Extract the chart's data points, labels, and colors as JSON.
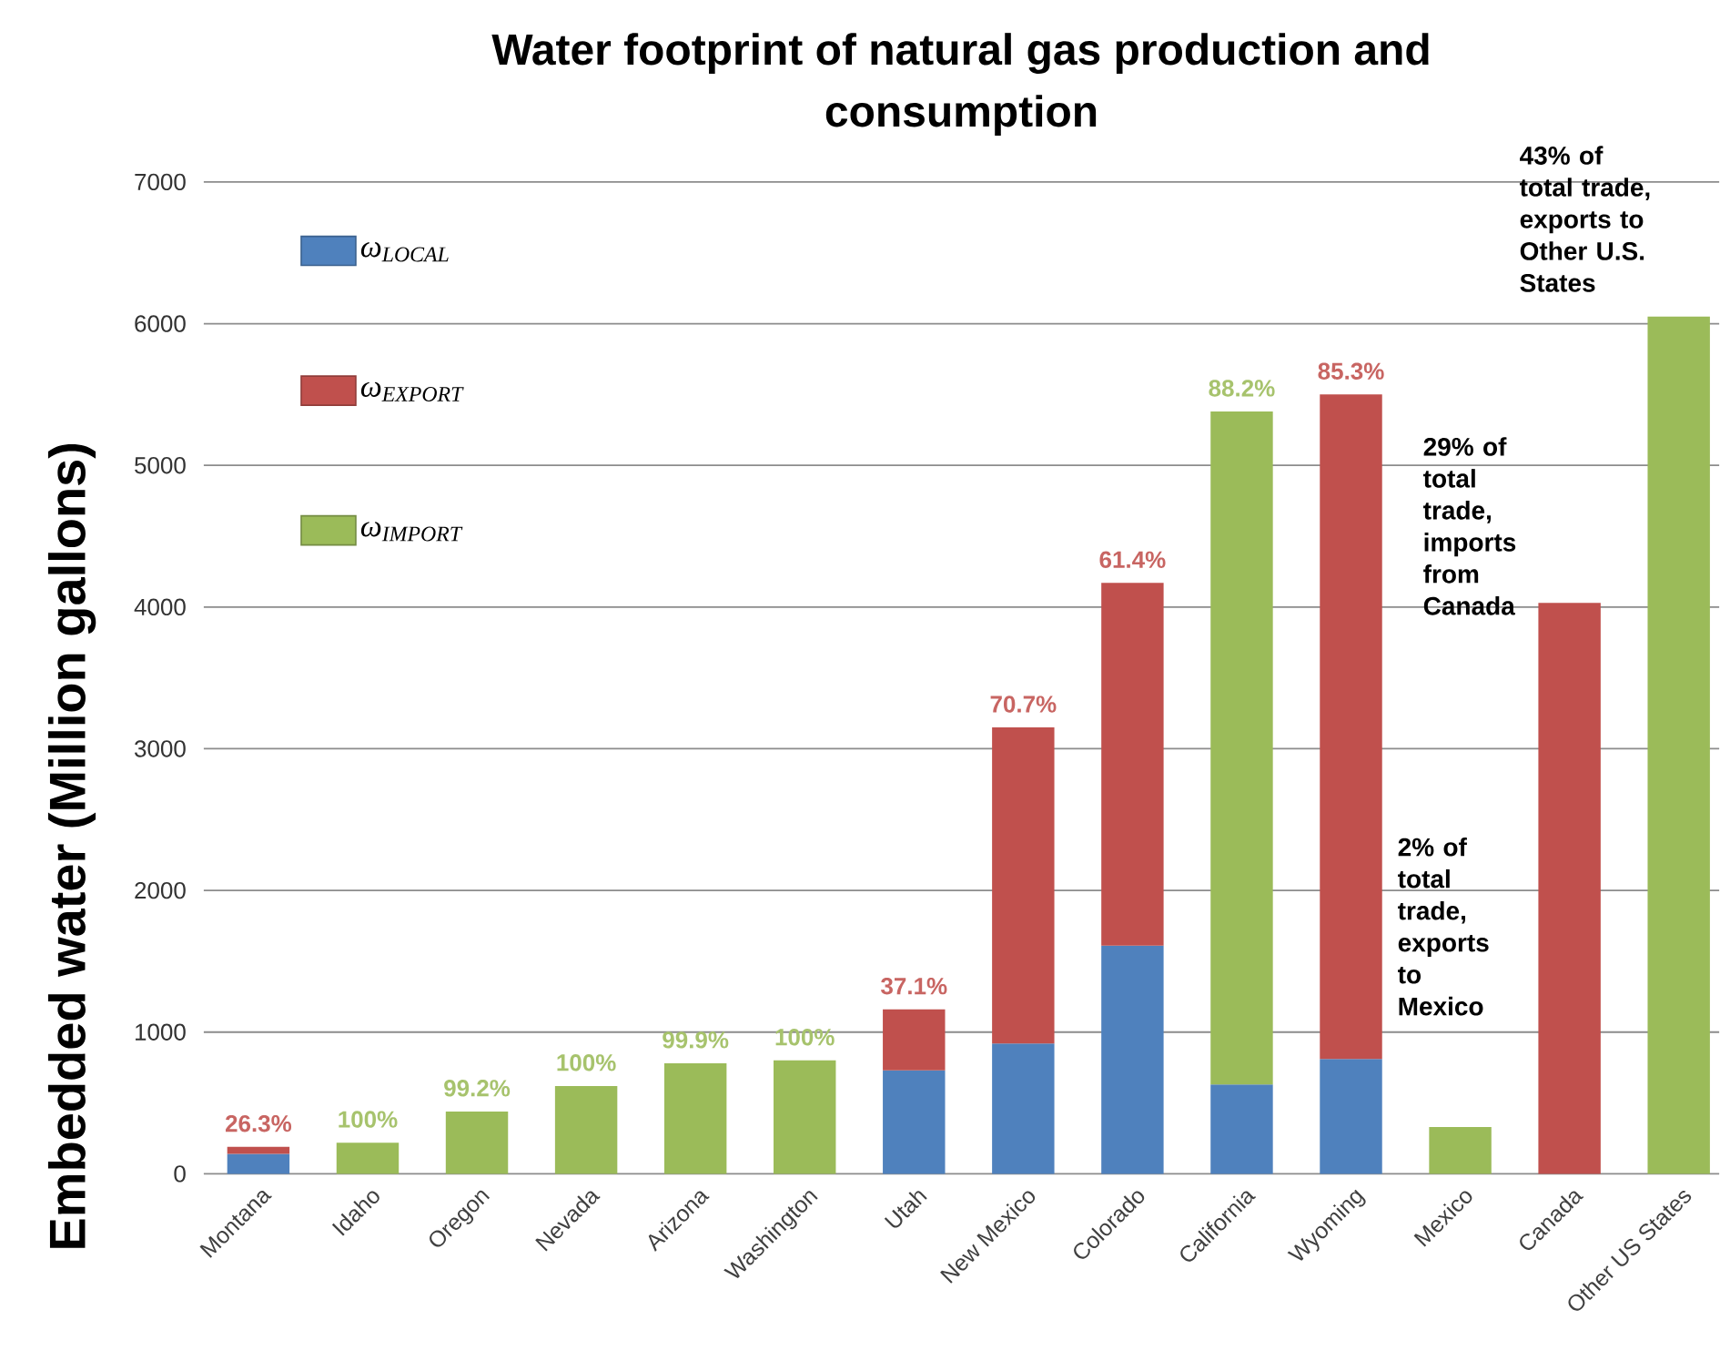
{
  "chart_data": {
    "type": "bar",
    "title": "Water footprint of natural gas production and consumption",
    "ylabel": "Embedded water (Million gallons)",
    "categories": [
      "Montana",
      "Idaho",
      "Oregon",
      "Nevada",
      "Arizona",
      "Washington",
      "Utah",
      "New Mexico",
      "Colorado",
      "California",
      "Wyoming",
      "Mexico",
      "Canada",
      "Other US States"
    ],
    "stacked": true,
    "series": [
      {
        "name": "ω$_{LOCAL}$",
        "color": "#4f81bd",
        "values": [
          140,
          null,
          null,
          null,
          null,
          null,
          730,
          920,
          1610,
          630,
          810,
          null,
          null,
          null
        ]
      },
      {
        "name": "ω$_{EXPORT}$",
        "color": "#c0504d",
        "values": [
          50,
          null,
          null,
          null,
          null,
          null,
          430,
          2230,
          2560,
          null,
          4690,
          null,
          4030,
          null
        ]
      },
      {
        "name": "ω$_{IMPORT}$",
        "color": "#9bbb59",
        "values": [
          null,
          220,
          440,
          620,
          780,
          800,
          null,
          null,
          null,
          4750,
          null,
          330,
          null,
          6050
        ]
      }
    ],
    "ylim": [
      0,
      7000
    ],
    "yticks": [
      0,
      1000,
      2000,
      3000,
      4000,
      5000,
      6000,
      7000
    ],
    "grid": "y",
    "legend": "top left",
    "annotations": [
      {
        "text": "26.3%",
        "x": "Montana",
        "y": 190
      },
      {
        "text": "100%",
        "x": "Idaho",
        "y": 220
      },
      {
        "text": "99.2%",
        "x": "Oregon",
        "y": 440
      },
      {
        "text": "100%",
        "x": "Nevada",
        "y": 620
      },
      {
        "text": "99.9%",
        "x": "Arizona",
        "y": 780
      },
      {
        "text": "100%",
        "x": "Washington",
        "y": 800
      },
      {
        "text": "37.1%",
        "x": "Utah",
        "y": 1160
      },
      {
        "text": "70.7%",
        "x": "New Mexico",
        "y": 3150
      },
      {
        "text": "61.4%",
        "x": "Colorado",
        "y": 4170
      },
      {
        "text": "88.2%",
        "x": "California",
        "y": 5380
      },
      {
        "text": "85.3%",
        "x": "Wyoming",
        "y": 5500
      },
      "2% of total trade, exports to Mexico",
      "29% of total trade, imports from Canada",
      "43% of total trade, exports to Other U.S. States"
    ]
  }
}
